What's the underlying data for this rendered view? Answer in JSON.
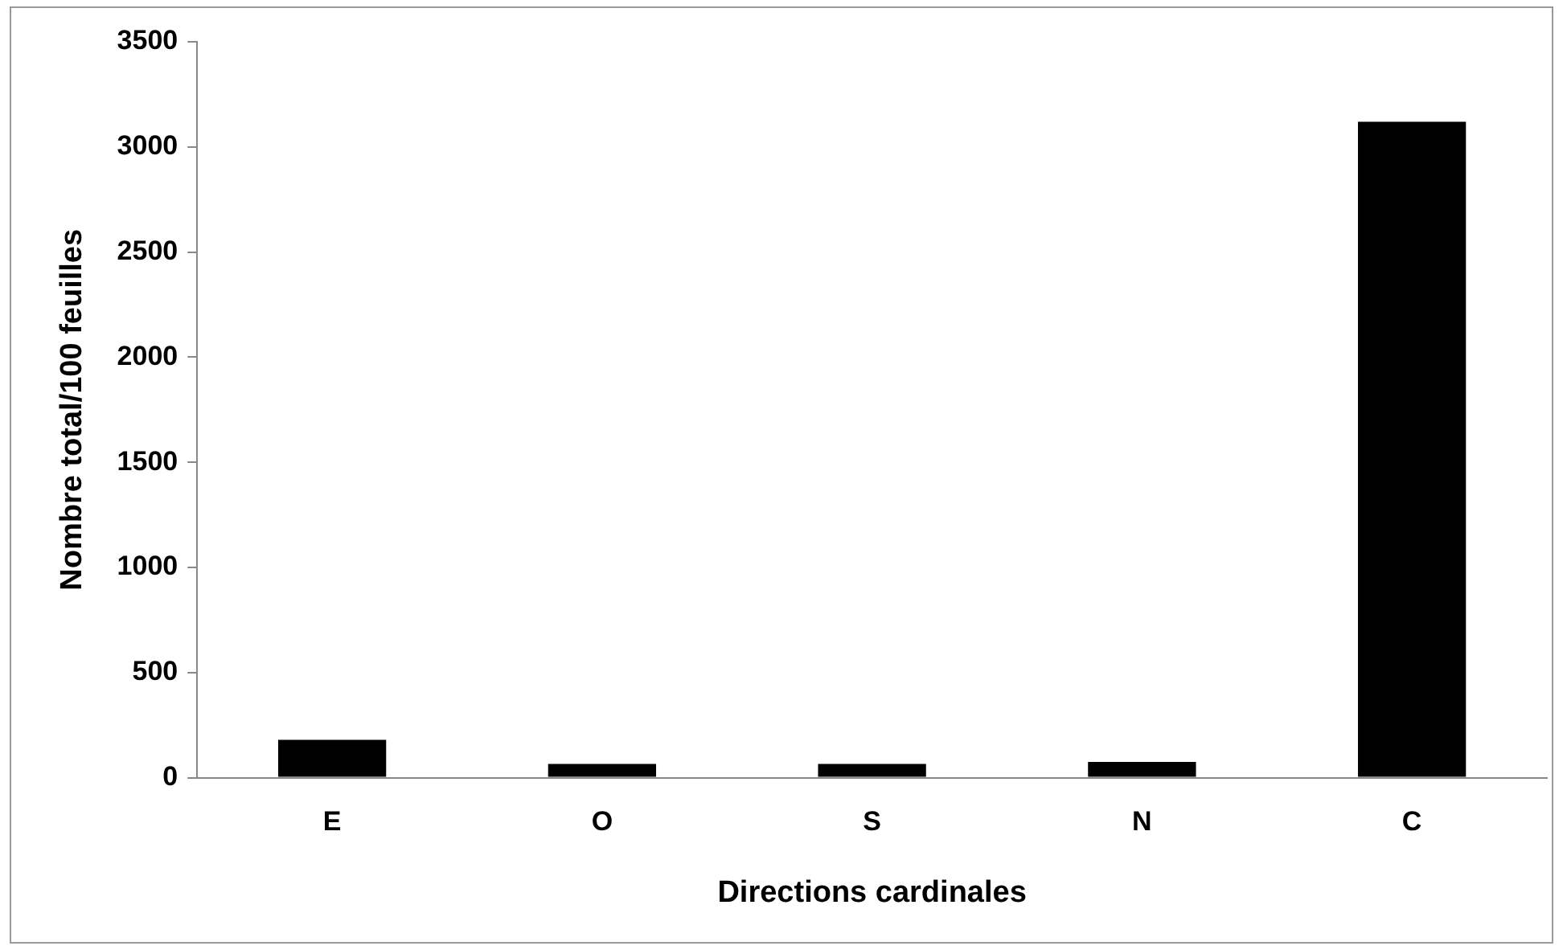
{
  "chart_data": {
    "type": "bar",
    "xlabel": "Directions cardinales",
    "ylabel": "Nombre total/100 feuilles",
    "categories": [
      "E",
      "O",
      "S",
      "N",
      "C"
    ],
    "series": [
      {
        "color": "#000000",
        "values": [
          180,
          65,
          65,
          75,
          3120
        ]
      }
    ],
    "ylim": [
      0,
      3500
    ],
    "yticks": [
      0,
      500,
      1000,
      1500,
      2000,
      2500,
      3000,
      3500
    ],
    "grid": false,
    "legend": false
  }
}
